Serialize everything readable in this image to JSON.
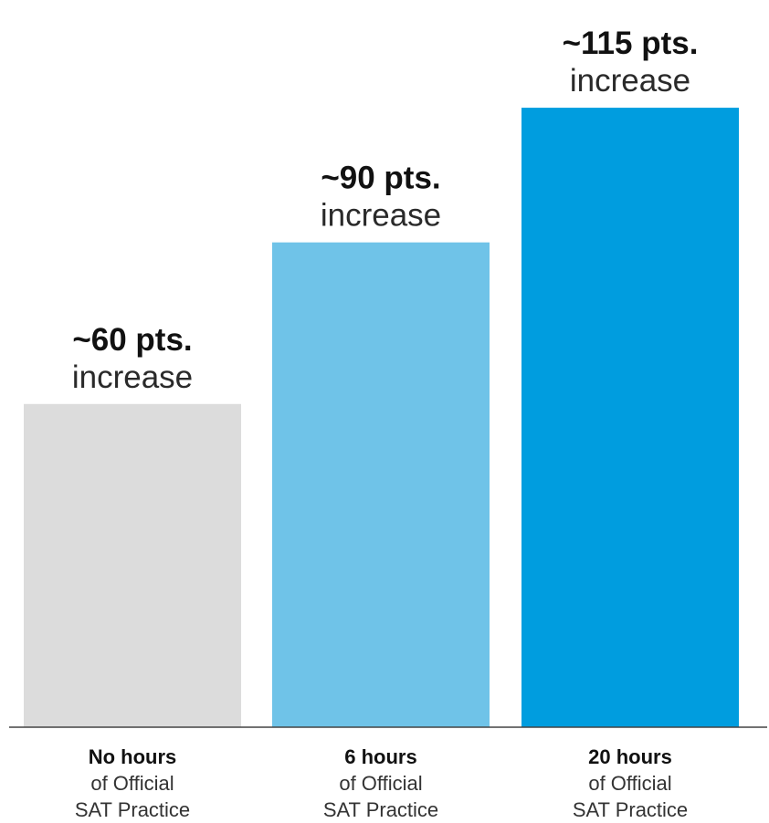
{
  "chart_data": {
    "type": "bar",
    "ylim": [
      0,
      135
    ],
    "grid": false,
    "categories": [
      "No hours",
      "6 hours",
      "20 hours"
    ],
    "category_sublines": [
      [
        "of Official",
        "SAT Practice"
      ],
      [
        "of Official",
        "SAT Practice"
      ],
      [
        "of Official",
        "SAT Practice"
      ]
    ],
    "values": [
      60,
      90,
      115
    ],
    "value_labels": [
      "~60 pts.",
      "~90 pts.",
      "~115 pts."
    ],
    "value_sublabels": [
      "increase",
      "increase",
      "increase"
    ],
    "colors": [
      "#dcdcdc",
      "#6fc3e8",
      "#009ddf"
    ],
    "baseline_color": "#444444"
  }
}
